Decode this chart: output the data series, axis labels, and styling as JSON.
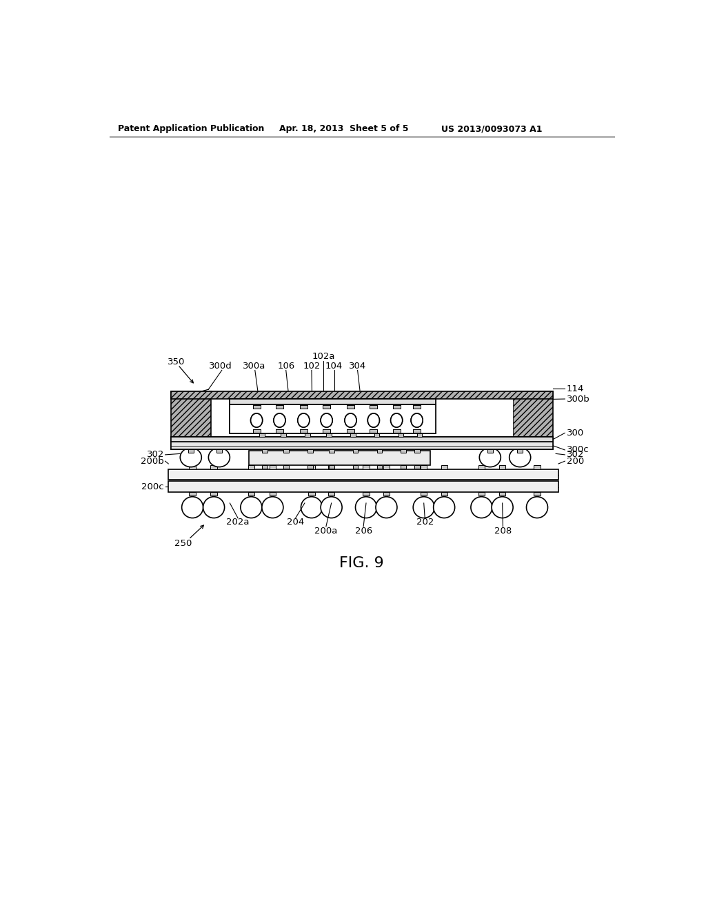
{
  "bg_color": "#ffffff",
  "header_left": "Patent Application Publication",
  "header_mid": "Apr. 18, 2013  Sheet 5 of 5",
  "header_right": "US 2013/0093073 A1",
  "fig_label": "FIG. 9"
}
